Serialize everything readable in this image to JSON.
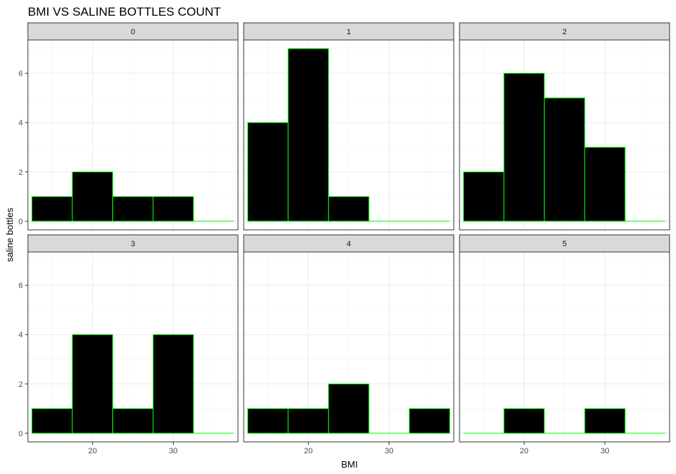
{
  "chart_data": {
    "type": "bar",
    "chart_kind": "faceted histogram",
    "title": "BMI VS SALINE BOTTLES COUNT",
    "xlabel": "BMI",
    "ylabel": "saline bottles",
    "facet_label": "",
    "x_ticks": [
      20,
      30
    ],
    "y_ticks": [
      0,
      2,
      4,
      6
    ],
    "xlim": [
      12,
      38
    ],
    "ylim": [
      0,
      7
    ],
    "bin_edges": [
      12.5,
      17.5,
      22.5,
      27.5,
      32.5,
      37.5
    ],
    "bin_width": 5,
    "facet_layout": "2 rows x 3 columns",
    "grid": true,
    "bar_fill": "#000000",
    "bar_outline": "#00ff00",
    "strip_fill": "#d9d9d9",
    "facets": [
      {
        "label": "0",
        "counts": [
          1,
          2,
          1,
          1,
          0
        ]
      },
      {
        "label": "1",
        "counts": [
          4,
          7,
          1,
          0,
          0
        ]
      },
      {
        "label": "2",
        "counts": [
          2,
          6,
          5,
          3,
          0
        ]
      },
      {
        "label": "3",
        "counts": [
          1,
          4,
          1,
          4,
          0
        ]
      },
      {
        "label": "4",
        "counts": [
          1,
          1,
          2,
          0,
          1
        ]
      },
      {
        "label": "5",
        "counts": [
          0,
          1,
          0,
          1,
          0
        ]
      }
    ]
  }
}
